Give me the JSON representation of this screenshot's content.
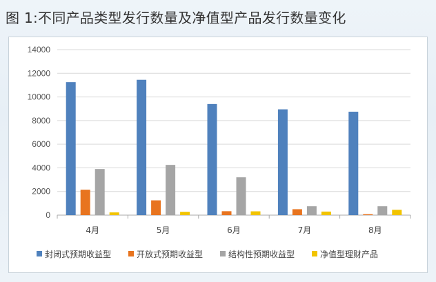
{
  "title": "图 1:不同产品类型发行数量及净值型产品发行数量变化",
  "chart_data": {
    "type": "bar",
    "categories": [
      "4月",
      "5月",
      "6月",
      "7月",
      "8月"
    ],
    "series": [
      {
        "name": "封闭式预期收益型",
        "color": "#4f81bd",
        "values": [
          11250,
          11450,
          9400,
          8950,
          8750
        ]
      },
      {
        "name": "开放式预期收益型",
        "color": "#e8741f",
        "values": [
          2150,
          1250,
          330,
          500,
          80
        ]
      },
      {
        "name": "结构性预期收益型",
        "color": "#a5a5a5",
        "values": [
          3900,
          4250,
          3200,
          750,
          750
        ]
      },
      {
        "name": "净值型理财产品",
        "color": "#f2c400",
        "values": [
          230,
          280,
          320,
          300,
          450
        ]
      }
    ],
    "ylim": [
      0,
      14000
    ],
    "yticks": [
      0,
      2000,
      4000,
      6000,
      8000,
      10000,
      12000,
      14000
    ],
    "grid": true,
    "legend": "bottom",
    "xlabel": "",
    "ylabel": ""
  }
}
